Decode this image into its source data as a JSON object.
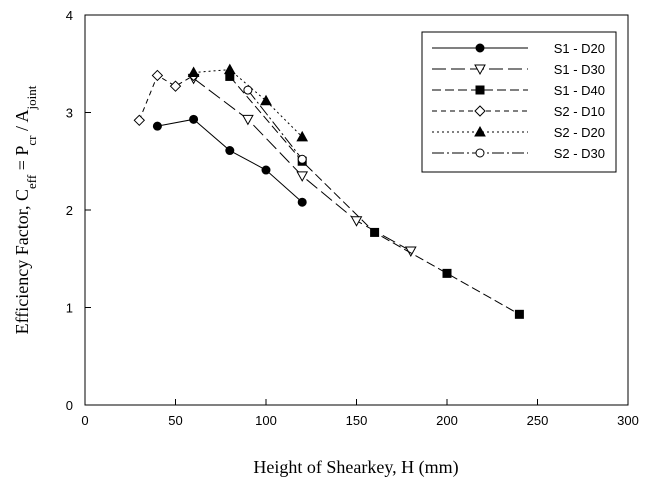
{
  "chart_data": {
    "type": "line",
    "xlabel": "Height of Shearkey, H (mm)",
    "ylabel_parts": {
      "prefix": "Efficiency Factor, C",
      "sub1": "eff",
      "mid1": " = P",
      "sub2": "cr",
      "mid2": " / A",
      "sub3": "joint"
    },
    "xlim": [
      0,
      300
    ],
    "ylim": [
      0,
      4
    ],
    "xticks": [
      0,
      50,
      100,
      150,
      200,
      250,
      300
    ],
    "yticks": [
      0,
      1,
      2,
      3,
      4
    ],
    "xtick_labels": [
      "0",
      "50",
      "100",
      "150",
      "200",
      "250",
      "300"
    ],
    "ytick_labels": [
      "0",
      "1",
      "2",
      "3",
      "4"
    ],
    "grid": false,
    "legend_position": "top-right",
    "series": [
      {
        "name": "S1 - D20",
        "marker": "circle",
        "filled": true,
        "dash": "",
        "x": [
          40,
          60,
          80,
          100,
          120
        ],
        "y": [
          2.86,
          2.93,
          2.61,
          2.41,
          2.08
        ]
      },
      {
        "name": "S1 - D30",
        "marker": "triangle-down",
        "filled": false,
        "dash": "14 5",
        "x": [
          60,
          90,
          120,
          150,
          180
        ],
        "y": [
          3.35,
          2.93,
          2.35,
          1.89,
          1.58
        ]
      },
      {
        "name": "S1 - D40",
        "marker": "square",
        "filled": true,
        "dash": "9 4",
        "x": [
          80,
          120,
          160,
          200,
          240
        ],
        "y": [
          3.37,
          2.5,
          1.77,
          1.35,
          0.93
        ]
      },
      {
        "name": "S2 - D10",
        "marker": "diamond",
        "filled": false,
        "dash": "5 4",
        "x": [
          30,
          40,
          50,
          60
        ],
        "y": [
          2.92,
          3.38,
          3.27,
          3.38
        ]
      },
      {
        "name": "S2 - D20",
        "marker": "triangle-up",
        "filled": true,
        "dash": "2 3",
        "x": [
          60,
          80,
          100,
          120
        ],
        "y": [
          3.41,
          3.44,
          3.12,
          2.75
        ]
      },
      {
        "name": "S2 - D30",
        "marker": "circle",
        "filled": false,
        "dash": "12 3 2 3",
        "x": [
          90,
          120
        ],
        "y": [
          3.23,
          2.52
        ]
      }
    ]
  }
}
